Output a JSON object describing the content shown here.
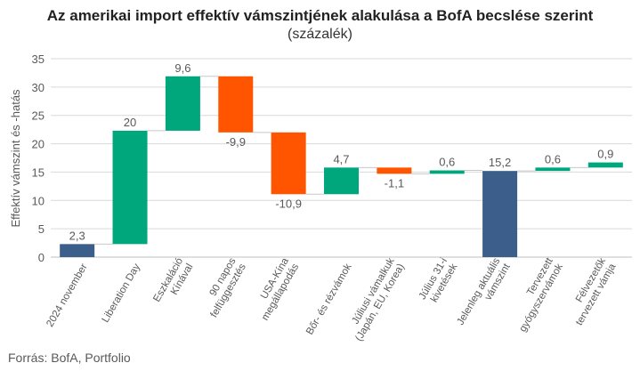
{
  "chart_data": {
    "type": "waterfall",
    "title": "Az amerikai import effektív vámszintjének alakulása a BofA becslése szerint",
    "subtitle": "(százalék)",
    "ylabel": "Effektív vámszint és -hatás",
    "ylim": [
      0,
      35
    ],
    "yticks": [
      0,
      5,
      10,
      15,
      20,
      25,
      30,
      35
    ],
    "grid": true,
    "source": "Forrás: BofA, Portfolio",
    "colors": {
      "total": "#3b5f8a",
      "increase": "#00a67c",
      "decrease": "#ff5500"
    },
    "bars": [
      {
        "category": [
          "2024 november"
        ],
        "value": 2.3,
        "label": "2,3",
        "kind": "total"
      },
      {
        "category": [
          "Liberation  Day"
        ],
        "value": 20,
        "label": "20",
        "kind": "increase"
      },
      {
        "category": [
          "Eszkaláció",
          "Kínával"
        ],
        "value": 9.6,
        "label": "9,6",
        "kind": "increase"
      },
      {
        "category": [
          "90 napos",
          "felfüggesztés"
        ],
        "value": -9.9,
        "label": "-9,9",
        "kind": "decrease"
      },
      {
        "category": [
          "USA-Kína",
          "megállapodás"
        ],
        "value": -10.9,
        "label": "-10,9",
        "kind": "decrease"
      },
      {
        "category": [
          "Bőr- és rézvámok"
        ],
        "value": 4.7,
        "label": "4,7",
        "kind": "increase"
      },
      {
        "category": [
          "Júliusi vámalkuk",
          "(Japán, EU, Korea)"
        ],
        "value": -1.1,
        "label": "-1,1",
        "kind": "decrease"
      },
      {
        "category": [
          "Július 31-i",
          "kivetések"
        ],
        "value": 0.6,
        "label": "0,6",
        "kind": "increase"
      },
      {
        "category": [
          "Jelenleg aktuális",
          "vámszint"
        ],
        "value": 15.2,
        "label": "15,2",
        "kind": "total"
      },
      {
        "category": [
          "Tervezett",
          "gyógyszervámok"
        ],
        "value": 0.6,
        "label": "0,6",
        "kind": "increase"
      },
      {
        "category": [
          "Félvezetők",
          "tervezett vámja"
        ],
        "value": 0.9,
        "label": "0,9",
        "kind": "increase"
      }
    ]
  }
}
